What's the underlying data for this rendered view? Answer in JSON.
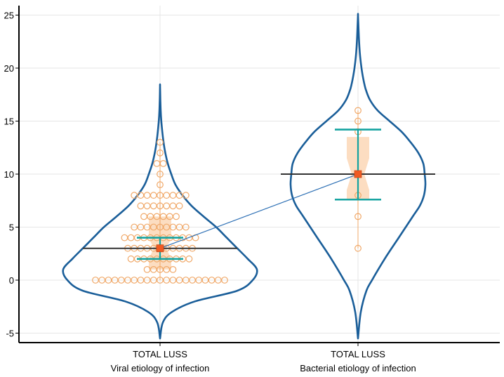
{
  "chart_data": {
    "type": "violin",
    "title": "",
    "xlabel": "",
    "ylabel": "",
    "ylim": [
      -6,
      25.5
    ],
    "yticks": [
      -5,
      0,
      5,
      10,
      15,
      20,
      25
    ],
    "ytick_labels": [
      "-5",
      "0",
      "5",
      "10",
      "15",
      "20",
      "25"
    ],
    "grid": true,
    "colors": {
      "violin": "#1a5e99",
      "points": "#f0a868",
      "box_fill": "#fbd7b6",
      "median_marker": "#f05a22",
      "ci_bars": "#14a3a0",
      "mean_line": "#333333",
      "connector": "#2c6fb4",
      "grid": "#e6e6e6",
      "axis": "#000000"
    },
    "groups": [
      {
        "name": "Viral etiology of infection",
        "label_line1": "TOTAL LUSS",
        "label_line2": "Viral etiology of infection",
        "median": 3,
        "mean": 3,
        "q1": 1,
        "q3": 6,
        "notch_low": 2,
        "notch_high": 4,
        "ci_low": 2,
        "ci_high": 4,
        "violin_min": -5.5,
        "violin_max": 18.3,
        "point_counts": [
          {
            "y": 0,
            "n": 21
          },
          {
            "y": 1,
            "n": 5
          },
          {
            "y": 2,
            "n": 10
          },
          {
            "y": 3,
            "n": 11
          },
          {
            "y": 4,
            "n": 12
          },
          {
            "y": 5,
            "n": 9
          },
          {
            "y": 6,
            "n": 6
          },
          {
            "y": 7,
            "n": 7
          },
          {
            "y": 8,
            "n": 9
          },
          {
            "y": 9,
            "n": 1
          },
          {
            "y": 10,
            "n": 1
          },
          {
            "y": 11,
            "n": 2
          },
          {
            "y": 12,
            "n": 1
          },
          {
            "y": 13,
            "n": 1
          }
        ]
      },
      {
        "name": "Bacterial etiology of infection",
        "label_line1": "TOTAL LUSS",
        "label_line2": "Bacterial etiology of infection",
        "median": 10,
        "mean": 10,
        "q1": 7.6,
        "q3": 13.5,
        "notch_low": 8.5,
        "notch_high": 11.5,
        "ci_low": 7.6,
        "ci_high": 14.2,
        "violin_min": -5.5,
        "violin_max": 25,
        "point_counts": [
          {
            "y": 3,
            "n": 1
          },
          {
            "y": 6,
            "n": 1
          },
          {
            "y": 8,
            "n": 1
          },
          {
            "y": 10,
            "n": 1
          },
          {
            "y": 14,
            "n": 1
          },
          {
            "y": 15,
            "n": 1
          },
          {
            "y": 16,
            "n": 1
          }
        ]
      }
    ]
  }
}
